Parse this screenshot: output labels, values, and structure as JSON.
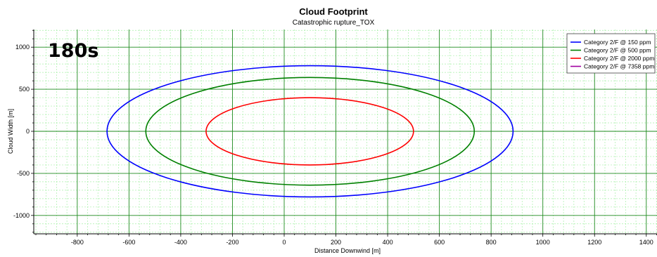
{
  "chart_data": {
    "type": "line",
    "title": "Cloud Footprint",
    "subtitle": "Catastrophic rupture_TOX",
    "xlabel": "Distance Downwind [m]",
    "ylabel": "Cloud Width [m]",
    "time_label": "180s",
    "xlim": [
      -970,
      1440
    ],
    "ylim": [
      -1200,
      1200
    ],
    "x_ticks": [
      -800,
      -600,
      -400,
      -200,
      0,
      200,
      400,
      600,
      800,
      1000,
      1200,
      1400
    ],
    "y_ticks": [
      -1000,
      -500,
      0,
      500,
      1000
    ],
    "grid": true,
    "legend_position": "top-right",
    "series": [
      {
        "name": "Category 2/F @ 150 ppm",
        "color": "#0000ff",
        "shape": "ellipse",
        "x_min": -685,
        "x_max": 885,
        "y_max": 780
      },
      {
        "name": "Category 2/F @ 500 ppm",
        "color": "#008000",
        "shape": "ellipse",
        "x_min": -535,
        "x_max": 735,
        "y_max": 640
      },
      {
        "name": "Category 2/F @ 2000 ppm",
        "color": "#ff0000",
        "shape": "ellipse",
        "x_min": -302,
        "x_max": 500,
        "y_max": 400
      },
      {
        "name": "Category 2/F @ 7358 ppm",
        "color": "#a000a0",
        "shape": "none"
      }
    ]
  }
}
